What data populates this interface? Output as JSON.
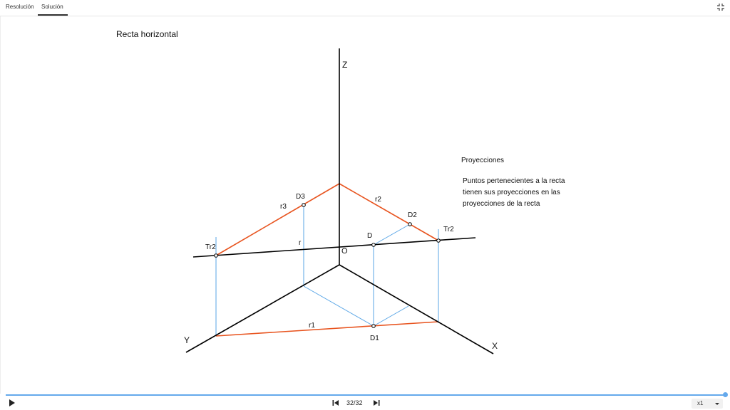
{
  "tabs": [
    {
      "label": "Resolución",
      "active": false
    },
    {
      "label": "Solución",
      "active": true
    }
  ],
  "fullscreen_icon": "exit-fullscreen-icon",
  "diagram": {
    "title": "Recta horizontal",
    "notes": {
      "heading": "Proyecciones",
      "lines": [
        "Puntos pertenecientes a la recta",
        "tienen sus proyecciones en las",
        "proyecciones de la recta"
      ]
    },
    "labels": {
      "z_axis": "Z",
      "x_axis": "X",
      "y_axis": "Y",
      "origin": "O",
      "line_r": "r",
      "r1": "r1",
      "r2": "r2",
      "r3": "r3",
      "point_d": "D",
      "point_d1": "D1",
      "point_d2": "D2",
      "point_d3": "D3",
      "trace_left": "Tr2",
      "trace_right": "Tr2"
    },
    "colors": {
      "axis": "#000000",
      "projection": "#e8541f",
      "construction": "#5aa6e6"
    }
  },
  "player": {
    "page_counter": "32/32",
    "speed": "x1",
    "progress": 1.0,
    "icons": {
      "play": "play-icon",
      "prev": "skip-previous-icon",
      "next": "skip-next-icon",
      "speed": "chevron-down-icon"
    }
  }
}
